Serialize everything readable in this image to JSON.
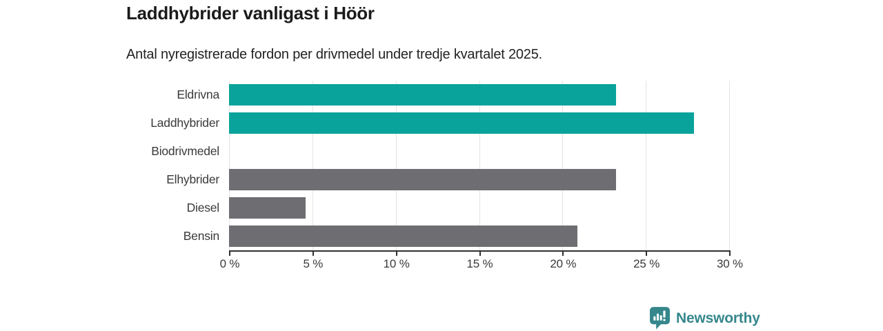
{
  "header": {
    "title": "Laddhybrider vanligast i Höör",
    "subtitle": "Antal nyregistrerade fordon per drivmedel under tredje kvartalet 2025."
  },
  "chart_data": {
    "type": "bar",
    "orientation": "horizontal",
    "title": "Laddhybrider vanligast i Höör",
    "subtitle": "Antal nyregistrerade fordon per drivmedel under tredje kvartalet 2025.",
    "categories": [
      "Eldrivna",
      "Laddhybrider",
      "Biodrivmedel",
      "Elhybrider",
      "Diesel",
      "Bensin"
    ],
    "values": [
      23.2,
      27.9,
      0,
      23.2,
      4.6,
      20.9
    ],
    "unit": "%",
    "xlim": [
      0,
      30
    ],
    "x_tick_values": [
      0,
      5,
      10,
      15,
      20,
      25,
      30
    ],
    "x_tick_labels": [
      "0 %",
      "5 %",
      "10 %",
      "15 %",
      "20 %",
      "25 %",
      "30 %"
    ],
    "bar_colors": [
      "#0aa39b",
      "#0aa39b",
      "#0aa39b",
      "#6e6e72",
      "#6e6e72",
      "#6e6e72"
    ],
    "grid": true,
    "legend": "none",
    "ylabel": "",
    "xlabel": ""
  },
  "colors": {
    "teal": "#0aa39b",
    "gray": "#6e6e72",
    "axis": "#2e2e2e",
    "grid": "#e4e4e4",
    "label_text": "#3a3a3a",
    "brand": "#35878c"
  },
  "branding": {
    "name": "Newsworthy",
    "icon": "bar-chart-bubble-icon"
  }
}
